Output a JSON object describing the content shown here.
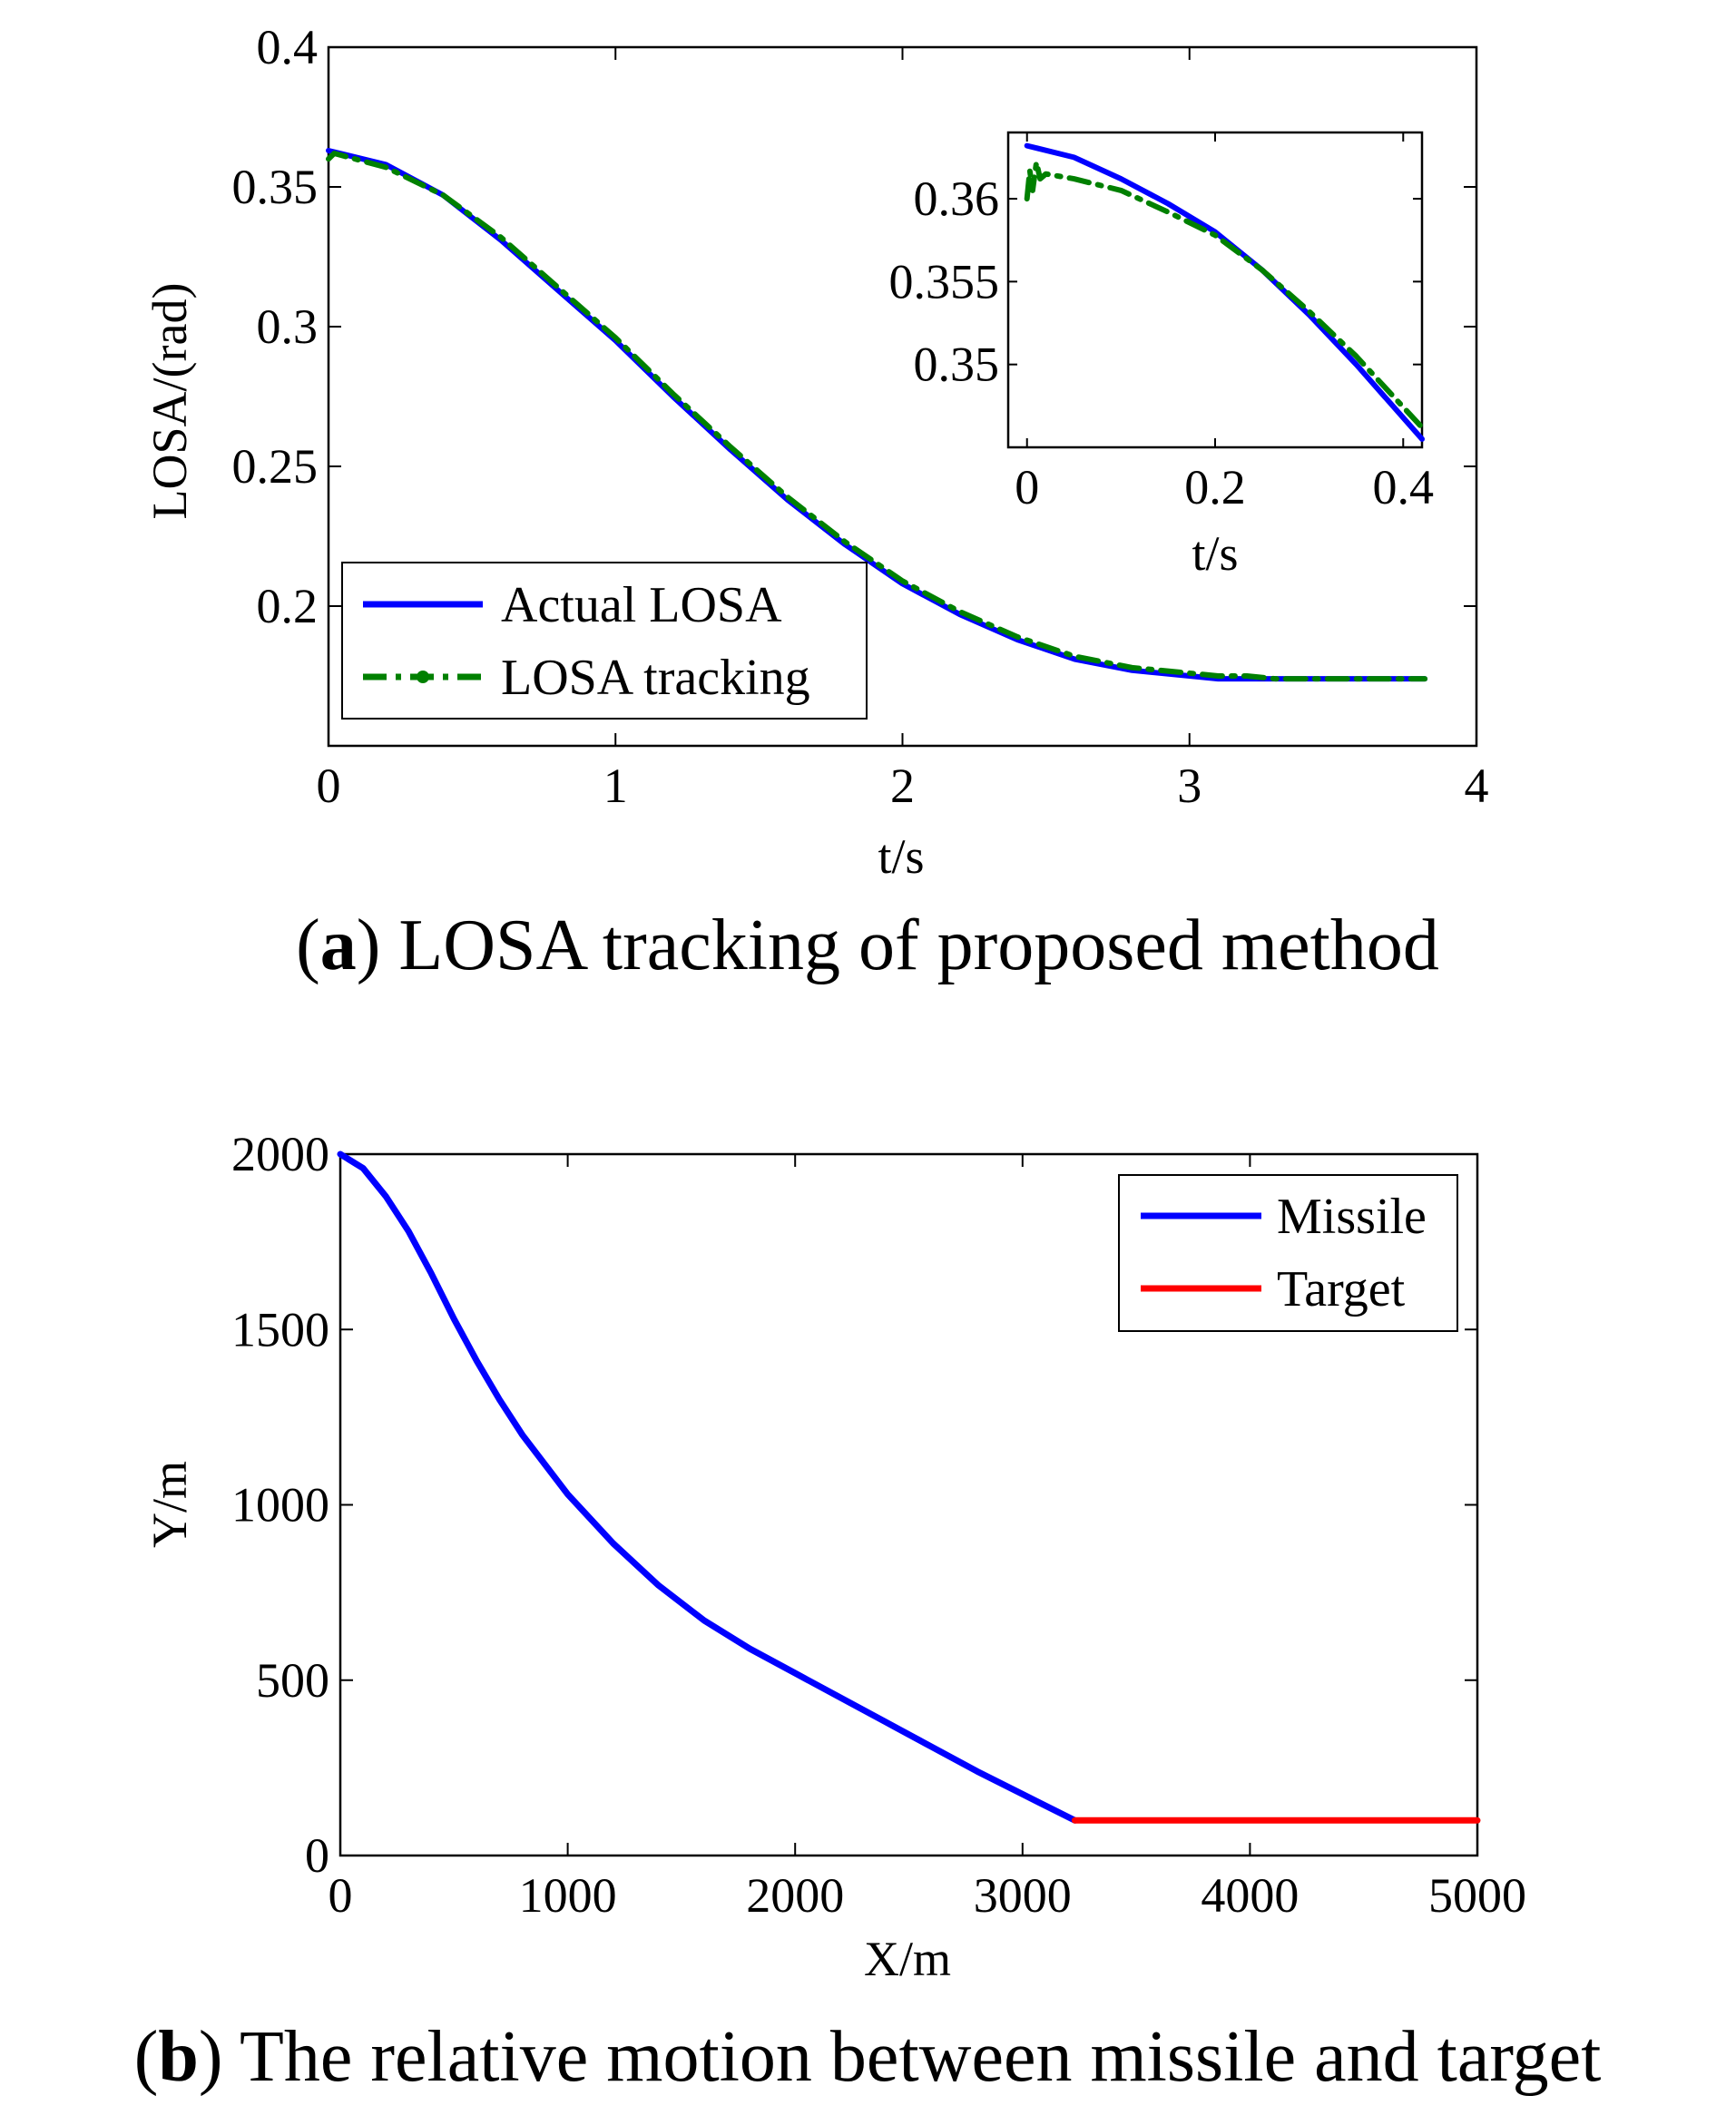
{
  "chart_data": [
    {
      "type": "line",
      "title": "",
      "caption_label": "a",
      "caption_text": "LOSA tracking of proposed method",
      "xlabel": "t/s",
      "ylabel": "LOSA/(rad)",
      "xlim": [
        0,
        4
      ],
      "ylim": [
        0.15,
        0.4
      ],
      "xticks": [
        0,
        1,
        2,
        3,
        4
      ],
      "xtick_labels": [
        "0",
        "1",
        "2",
        "3",
        "4"
      ],
      "yticks": [
        0.2,
        0.25,
        0.3,
        0.35,
        0.4
      ],
      "ytick_labels": [
        "0.2",
        "0.25",
        "0.3",
        "0.35",
        "0.4"
      ],
      "legend_position": "bottom-left",
      "series": [
        {
          "name": "Actual LOSA",
          "color": "#0000ff",
          "style": "solid",
          "x": [
            0,
            0.2,
            0.4,
            0.6,
            0.8,
            1.0,
            1.2,
            1.4,
            1.6,
            1.8,
            2.0,
            2.2,
            2.4,
            2.6,
            2.8,
            3.0,
            3.1,
            3.2,
            3.3,
            3.5,
            3.7,
            3.82
          ],
          "y": [
            0.363,
            0.358,
            0.347,
            0.331,
            0.313,
            0.295,
            0.275,
            0.256,
            0.238,
            0.222,
            0.208,
            0.197,
            0.188,
            0.181,
            0.177,
            0.175,
            0.174,
            0.174,
            0.174,
            0.174,
            0.174,
            0.174
          ]
        },
        {
          "name": "LOSA tracking",
          "color": "#008000",
          "style": "dash-dot",
          "x": [
            0,
            0.02,
            0.2,
            0.4,
            0.6,
            0.8,
            1.0,
            1.2,
            1.4,
            1.6,
            1.8,
            2.0,
            2.2,
            2.4,
            2.6,
            2.8,
            3.0,
            3.1,
            3.2,
            3.3,
            3.5,
            3.7,
            3.82
          ],
          "y": [
            0.36,
            0.362,
            0.357,
            0.347,
            0.332,
            0.314,
            0.296,
            0.276,
            0.257,
            0.239,
            0.223,
            0.209,
            0.198,
            0.189,
            0.182,
            0.178,
            0.176,
            0.175,
            0.175,
            0.174,
            0.174,
            0.174,
            0.174
          ]
        }
      ],
      "inset": {
        "xlabel": "t/s",
        "xlim": [
          -0.02,
          0.42
        ],
        "ylim": [
          0.345,
          0.364
        ],
        "xticks": [
          0,
          0.2,
          0.4
        ],
        "xtick_labels": [
          "0",
          "0.2",
          "0.4"
        ],
        "yticks": [
          0.35,
          0.355,
          0.36
        ],
        "ytick_labels": [
          "0.35",
          "0.355",
          "0.36"
        ],
        "series": [
          {
            "name": "Actual LOSA",
            "color": "#0000ff",
            "style": "solid",
            "x": [
              0,
              0.05,
              0.1,
              0.15,
              0.2,
              0.25,
              0.3,
              0.35,
              0.42
            ],
            "y": [
              0.3632,
              0.3625,
              0.3612,
              0.3597,
              0.358,
              0.3557,
              0.353,
              0.35,
              0.3455
            ]
          },
          {
            "name": "LOSA tracking",
            "color": "#008000",
            "style": "dash-dot",
            "x": [
              0,
              0.003,
              0.006,
              0.01,
              0.014,
              0.02,
              0.05,
              0.1,
              0.15,
              0.2,
              0.25,
              0.3,
              0.35,
              0.42
            ],
            "y": [
              0.36,
              0.3617,
              0.3605,
              0.3622,
              0.3612,
              0.3615,
              0.3612,
              0.3605,
              0.3592,
              0.3578,
              0.3557,
              0.3532,
              0.3505,
              0.3462
            ]
          }
        ]
      }
    },
    {
      "type": "line",
      "title": "",
      "caption_label": "b",
      "caption_text": "The relative motion between missile and target",
      "xlabel": "X/m",
      "ylabel": "Y/m",
      "xlim": [
        0,
        5000
      ],
      "ylim": [
        0,
        2000
      ],
      "xticks": [
        0,
        1000,
        2000,
        3000,
        4000,
        5000
      ],
      "xtick_labels": [
        "0",
        "1000",
        "2000",
        "3000",
        "4000",
        "5000"
      ],
      "yticks": [
        0,
        500,
        1000,
        1500,
        2000
      ],
      "ytick_labels": [
        "0",
        "500",
        "1000",
        "1500",
        "2000"
      ],
      "legend_position": "top-right",
      "series": [
        {
          "name": "Missile",
          "color": "#0000ff",
          "style": "solid",
          "x": [
            0,
            100,
            200,
            300,
            400,
            500,
            600,
            700,
            800,
            1000,
            1200,
            1400,
            1600,
            1800,
            2000,
            2200,
            2400,
            2600,
            2800,
            3000,
            3230
          ],
          "y": [
            2000,
            1960,
            1880,
            1780,
            1660,
            1530,
            1410,
            1300,
            1200,
            1030,
            890,
            770,
            670,
            590,
            520,
            450,
            380,
            310,
            240,
            175,
            100
          ]
        },
        {
          "name": "Target",
          "color": "#ff0000",
          "style": "solid",
          "x": [
            3230,
            5000
          ],
          "y": [
            100,
            100
          ]
        }
      ]
    }
  ]
}
